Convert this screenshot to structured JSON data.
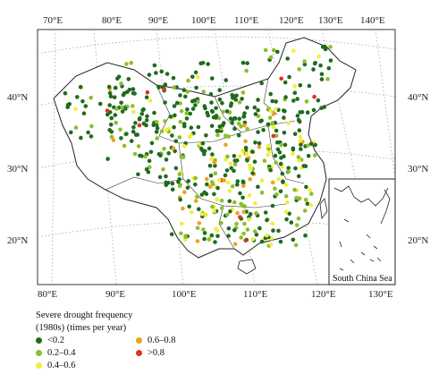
{
  "lon_ticks_top": [
    "70°E",
    "80°E",
    "90°E",
    "100°E",
    "110°E",
    "120°E",
    "130°E",
    "140°E"
  ],
  "lon_ticks_bottom": [
    "80°E",
    "90°E",
    "100°E",
    "110°E",
    "120°E",
    "130°E"
  ],
  "lat_ticks": [
    "40°N",
    "30°N",
    "20°N"
  ],
  "inset_label": "South China Sea",
  "legend": {
    "title_line1": "Severe drought frequency",
    "title_line2": "(1980s) (times per year)",
    "classes": [
      {
        "label": "<0.2",
        "color": "#1f6b1f"
      },
      {
        "label": "0.2–0.4",
        "color": "#8cbf2a"
      },
      {
        "label": "0.4–0.6",
        "color": "#f2ee3a"
      },
      {
        "label": "0.6–0.8",
        "color": "#f0a020"
      },
      {
        "label": ">0.8",
        "color": "#e0321e"
      }
    ]
  }
}
